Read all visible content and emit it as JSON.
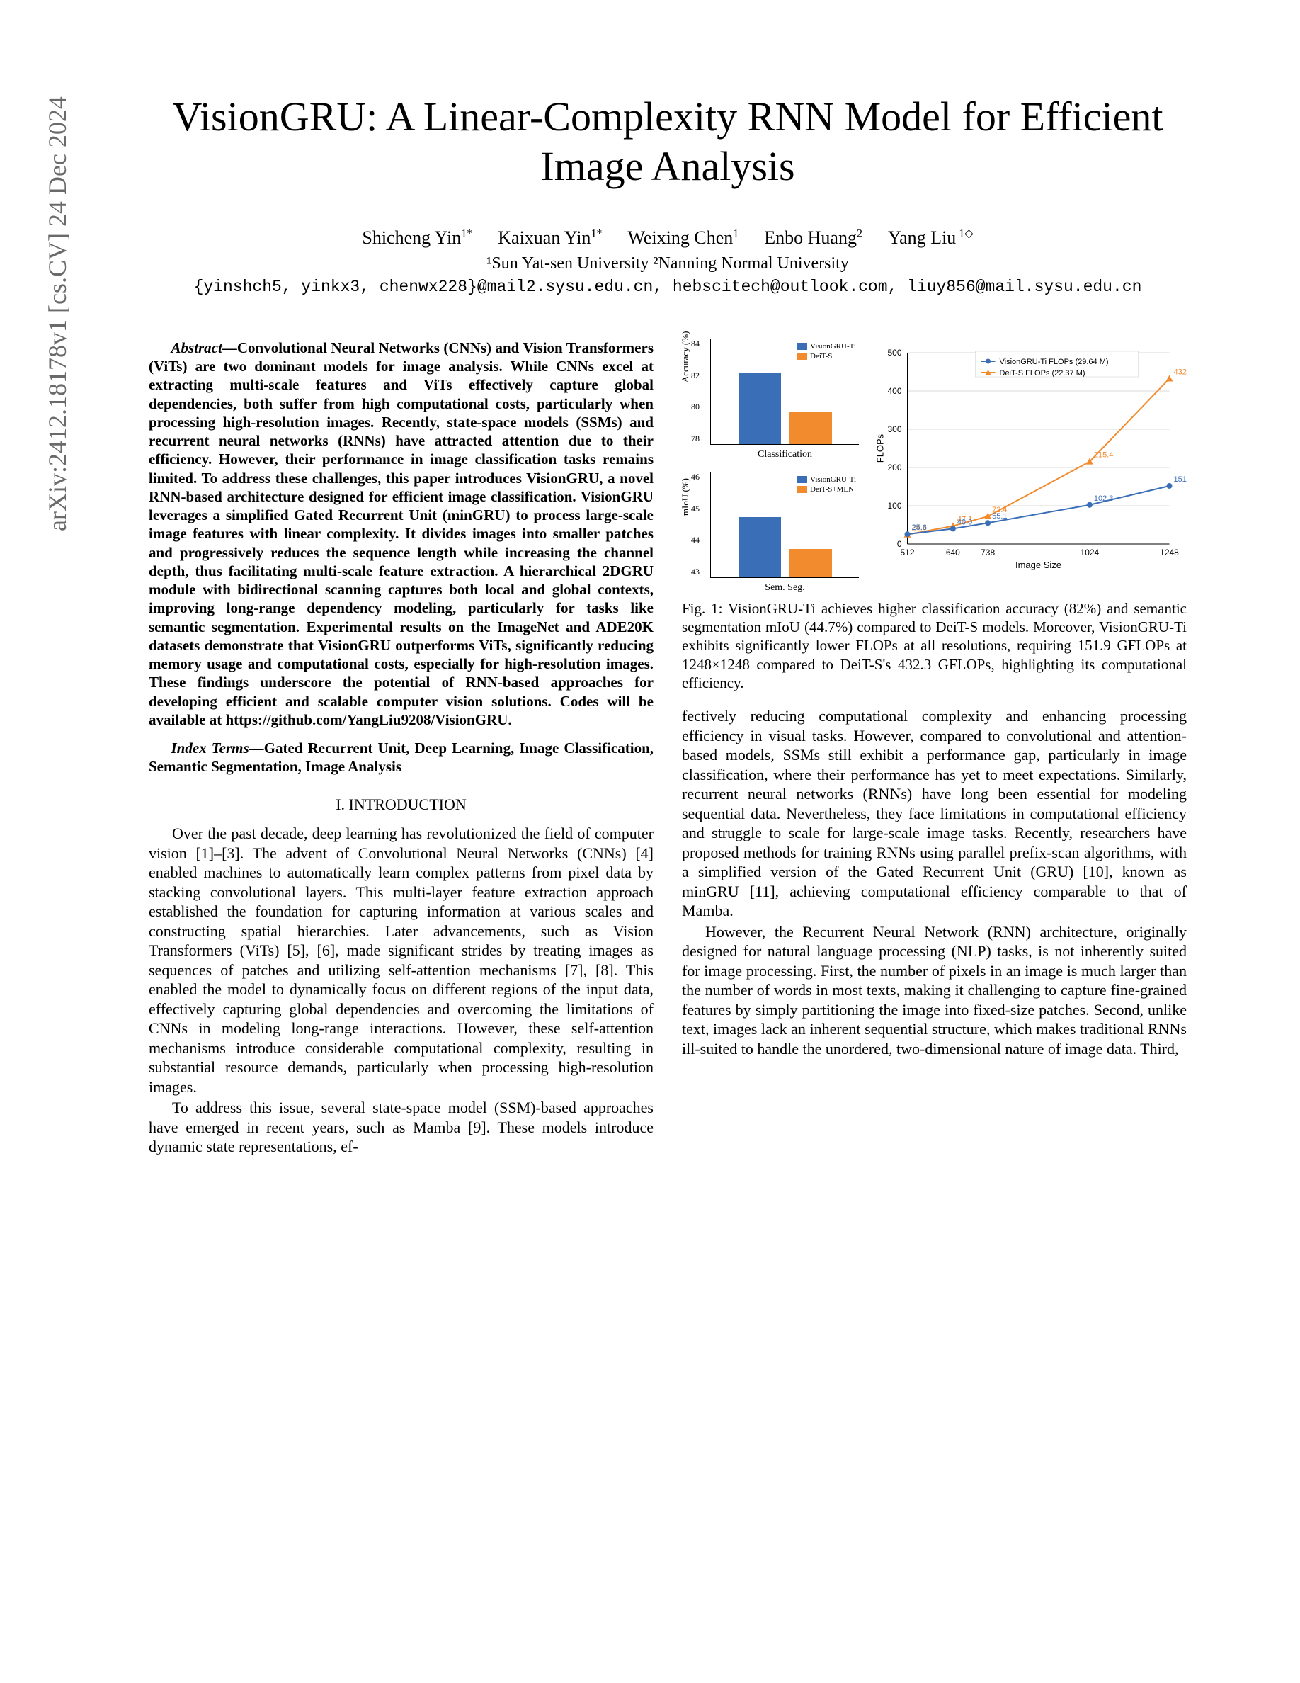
{
  "arxiv": "arXiv:2412.18178v1  [cs.CV]  24 Dec 2024",
  "title": "VisionGRU: A Linear-Complexity RNN Model for Efficient Image Analysis",
  "authors": [
    {
      "name": "Shicheng Yin",
      "sup": "1*"
    },
    {
      "name": "Kaixuan Yin",
      "sup": "1*"
    },
    {
      "name": "Weixing Chen",
      "sup": "1"
    },
    {
      "name": "Enbo Huang",
      "sup": "2"
    },
    {
      "name": "Yang Liu",
      "sup": " 1◇"
    }
  ],
  "affiliations": "¹Sun Yat-sen University   ²Nanning Normal University",
  "emails": "{yinshch5, yinkx3, chenwx228}@mail2.sysu.edu.cn, hebscitech@outlook.com, liuy856@mail.sysu.edu.cn",
  "abstract_label": "Abstract—",
  "abstract": "Convolutional Neural Networks (CNNs) and Vision Transformers (ViTs) are two dominant models for image analysis. While CNNs excel at extracting multi-scale features and ViTs effectively capture global dependencies, both suffer from high computational costs, particularly when processing high-resolution images. Recently, state-space models (SSMs) and recurrent neural networks (RNNs) have attracted attention due to their efficiency. However, their performance in image classification tasks remains limited. To address these challenges, this paper introduces VisionGRU, a novel RNN-based architecture designed for efficient image classification. VisionGRU leverages a simplified Gated Recurrent Unit (minGRU) to process large-scale image features with linear complexity. It divides images into smaller patches and progressively reduces the sequence length while increasing the channel depth, thus facilitating multi-scale feature extraction. A hierarchical 2DGRU module with bidirectional scanning captures both local and global contexts, improving long-range dependency modeling, particularly for tasks like semantic segmentation. Experimental results on the ImageNet and ADE20K datasets demonstrate that VisionGRU outperforms ViTs, significantly reducing memory usage and computational costs, especially for high-resolution images. These findings underscore the potential of RNN-based approaches for developing efficient and scalable computer vision solutions. Codes will be available at https://github.com/YangLiu9208/VisionGRU.",
  "index_terms_label": "Index Terms—",
  "index_terms": "Gated Recurrent Unit, Deep Learning, Image Classification, Semantic Segmentation, Image Analysis",
  "section1": "I.  INTRODUCTION",
  "intro_p1": "Over the past decade, deep learning has revolutionized the field of computer vision [1]–[3]. The advent of Convolutional Neural Networks (CNNs) [4] enabled machines to automatically learn complex patterns from pixel data by stacking convolutional layers. This multi-layer feature extraction approach established the foundation for capturing information at various scales and constructing spatial hierarchies. Later advancements, such as Vision Transformers (ViTs) [5], [6], made significant strides by treating images as sequences of patches and utilizing self-attention mechanisms [7], [8]. This enabled the model to dynamically focus on different regions of the input data, effectively capturing global dependencies and overcoming the limitations of CNNs in modeling long-range interactions. However, these self-attention mechanisms introduce considerable computational complexity, resulting in substantial resource demands, particularly when processing high-resolution images.",
  "intro_p2": "To address this issue, several state-space model (SSM)-based approaches have emerged in recent years, such as Mamba [9]. These models introduce dynamic state representations, ef-",
  "col2_p1": "fectively reducing computational complexity and enhancing processing efficiency in visual tasks. However, compared to convolutional and attention-based models, SSMs still exhibit a performance gap, particularly in image classification, where their performance has yet to meet expectations. Similarly, recurrent neural networks (RNNs) have long been essential for modeling sequential data. Nevertheless, they face limitations in computational efficiency and struggle to scale for large-scale image tasks. Recently, researchers have proposed methods for training RNNs using parallel prefix-scan algorithms, with a simplified version of the Gated Recurrent Unit (GRU) [10], known as minGRU [11], achieving computational efficiency comparable to that of Mamba.",
  "col2_p2": "However, the Recurrent Neural Network (RNN) architecture, originally designed for natural language processing (NLP) tasks, is not inherently suited for image processing. First, the number of pixels in an image is much larger than the number of words in most texts, making it challenging to capture fine-grained features by simply partitioning the image into fixed-size patches. Second, unlike text, images lack an inherent sequential structure, which makes traditional RNNs ill-suited to handle the unordered, two-dimensional nature of image data. Third,",
  "fig_caption": "Fig. 1: VisionGRU-Ti achieves higher classification accuracy (82%) and semantic segmentation mIoU (44.7%) compared to DeiT-S models. Moreover, VisionGRU-Ti exhibits significantly lower FLOPs at all resolutions, requiring 151.9 GFLOPs at 1248×1248 compared to DeiT-S's 432.3 GFLOPs, highlighting its computational efficiency.",
  "colors": {
    "blue": "#3a6fb7",
    "orange": "#f28b2e",
    "grid": "#d9d9d9",
    "axis": "#000000"
  },
  "chart_classification": {
    "type": "bar",
    "ylabel": "Accuracy (%)",
    "ylim": [
      78,
      84
    ],
    "yticks": [
      "84",
      "82",
      "80",
      "78"
    ],
    "sublabel": "Classification",
    "legend": [
      "VisionGRU-Ti",
      "DeiT-S"
    ],
    "values": {
      "VisionGRU-Ti": 82,
      "DeiT-S": 79.8
    },
    "bar_heights_pct": {
      "VisionGRU-Ti": 67,
      "DeiT-S": 30
    }
  },
  "chart_semseg": {
    "type": "bar",
    "ylabel": "mIoU (%)",
    "ylim": [
      43,
      46
    ],
    "yticks": [
      "46",
      "45",
      "44",
      "43"
    ],
    "sublabel": "Sem. Seg.",
    "legend": [
      "VisionGRU-Ti",
      "DeiT-S+MLN"
    ],
    "values": {
      "VisionGRU-Ti": 44.7,
      "DeiT-S+MLN": 43.8
    },
    "bar_heights_pct": {
      "VisionGRU-Ti": 57,
      "DeiT-S+MLN": 27
    }
  },
  "chart_flops": {
    "type": "line",
    "xlabel": "Image Size",
    "ylabel": "FLOPs",
    "xlim": [
      512,
      1248
    ],
    "ylim": [
      0,
      500
    ],
    "xticks": [
      512,
      640,
      738,
      1024,
      1248
    ],
    "yticks": [
      0,
      100,
      200,
      300,
      400,
      500
    ],
    "legend": [
      {
        "label": "VisionGRU-Ti FLOPs (29.64 M)",
        "color": "#3a6fb7",
        "marker": "circle"
      },
      {
        "label": "DeiT-S FLOPs (22.37 M)",
        "color": "#f28b2e",
        "marker": "triangle"
      }
    ],
    "series": {
      "visiongru": [
        {
          "x": 512,
          "y": 25.6,
          "label": "25.6"
        },
        {
          "x": 640,
          "y": 40.0,
          "label": "40.0"
        },
        {
          "x": 738,
          "y": 55.1,
          "label": "55.1"
        },
        {
          "x": 1024,
          "y": 102.3,
          "label": "102.3"
        },
        {
          "x": 1248,
          "y": 151.9,
          "label": "151.9"
        }
      ],
      "deits": [
        {
          "x": 512,
          "y": 24.6,
          "label": "24.6"
        },
        {
          "x": 640,
          "y": 47.1,
          "label": "47.1"
        },
        {
          "x": 738,
          "y": 72.4,
          "label": "72.4"
        },
        {
          "x": 1024,
          "y": 215.4,
          "label": "215.4"
        },
        {
          "x": 1248,
          "y": 432.3,
          "label": "432.3"
        }
      ]
    }
  }
}
